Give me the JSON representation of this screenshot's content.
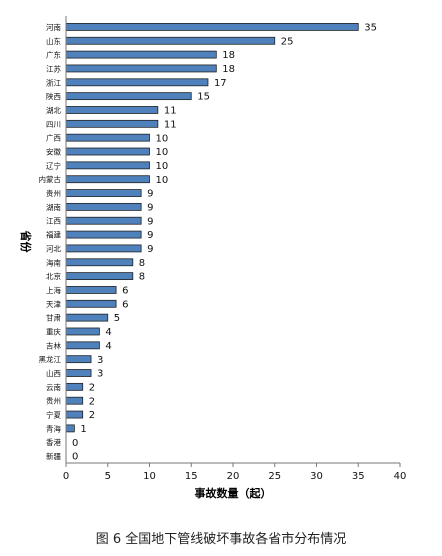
{
  "chart_data": {
    "type": "bar",
    "orientation": "horizontal",
    "categories": [
      "河南",
      "山东",
      "广东",
      "江苏",
      "浙江",
      "陕西",
      "湖北",
      "四川",
      "广西",
      "安徽",
      "辽宁",
      "内蒙古",
      "贵州",
      "湖南",
      "江西",
      "福建",
      "河北",
      "海南",
      "北京",
      "上海",
      "天津",
      "甘肃",
      "重庆",
      "吉林",
      "黑龙江",
      "山西",
      "云南",
      "贵州",
      "宁夏",
      "青海",
      "香港",
      "新疆"
    ],
    "values": [
      35,
      25,
      18,
      18,
      17,
      15,
      11,
      11,
      10,
      10,
      10,
      10,
      9,
      9,
      9,
      9,
      9,
      8,
      8,
      6,
      6,
      5,
      4,
      4,
      3,
      3,
      2,
      2,
      2,
      1,
      0,
      0
    ],
    "xlabel": "事故数量（起）",
    "ylabel": "省份",
    "xlim": [
      0,
      40
    ],
    "xticks": [
      0,
      5,
      10,
      15,
      20,
      25,
      30,
      35,
      40
    ],
    "bar_color": "#4f81bd",
    "grid": false,
    "caption": "图 6 全国地下管线破坏事故各省市分布情况"
  }
}
